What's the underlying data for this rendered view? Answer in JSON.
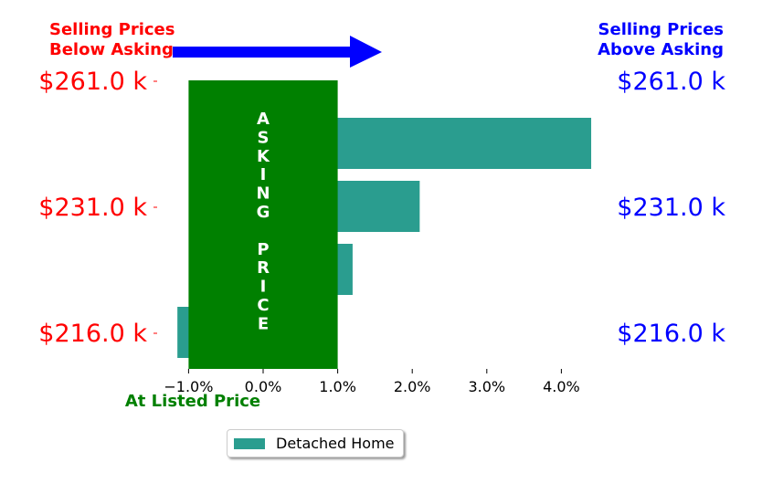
{
  "chart_data": {
    "type": "bar",
    "orientation": "horizontal",
    "header_left": [
      "Selling Prices",
      "Below Asking"
    ],
    "header_right": [
      "Selling Prices",
      "Above Asking"
    ],
    "colors": {
      "below": "#ff0000",
      "above": "#0000ff",
      "asking": "#008000",
      "bar": "#2a9d8f",
      "arrow": "#0000ff"
    },
    "price_labels": [
      "$261.0 k",
      "$231.0 k",
      "$216.0 k"
    ],
    "asking_band": {
      "x_from": -1.0,
      "x_to": 1.0,
      "text": "ASKING PRICE",
      "bottom_label": "At Listed Price"
    },
    "x_ticks": [
      -1.0,
      0.0,
      1.0,
      2.0,
      3.0,
      4.0
    ],
    "x_tick_labels": [
      "−1.0%",
      "0.0%",
      "1.0%",
      "2.0%",
      "3.0%",
      "4.0%"
    ],
    "xlim": [
      -1.0,
      4.4
    ],
    "series": [
      {
        "name": "Detached Home",
        "values": [
          4.4,
          2.1,
          1.2,
          -1.15
        ]
      }
    ],
    "legend": "bottom-center"
  }
}
